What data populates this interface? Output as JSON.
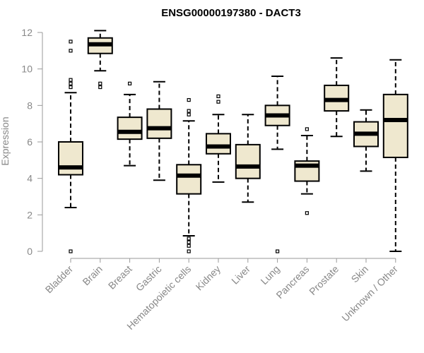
{
  "chart_data": {
    "type": "boxplot",
    "title": "ENSG00000197380 - DACT3",
    "xlabel": "",
    "ylabel": "Expression",
    "ylim": [
      0,
      12
    ],
    "yticks": [
      "0",
      "2",
      "4",
      "6",
      "8",
      "10",
      "12"
    ],
    "grid": false,
    "box_fill": "#efe8cf",
    "categories": [
      "Bladder",
      "Brain",
      "Breast",
      "Gastric",
      "Hematopoietic cells",
      "Kidney",
      "Liver",
      "Lung",
      "Pancreas",
      "Prostate",
      "Skin",
      "Unknown / Other"
    ],
    "boxes": [
      {
        "q1": 4.2,
        "median": 4.6,
        "q3": 6.0,
        "whisker_low": 2.4,
        "whisker_high": 8.7,
        "outliers": [
          0.0,
          9.0,
          9.2,
          9.4,
          11.0,
          11.5
        ]
      },
      {
        "q1": 10.85,
        "median": 11.35,
        "q3": 11.7,
        "whisker_low": 9.9,
        "whisker_high": 12.1,
        "outliers": [
          9.0,
          9.2
        ]
      },
      {
        "q1": 6.15,
        "median": 6.55,
        "q3": 7.35,
        "whisker_low": 4.7,
        "whisker_high": 8.6,
        "outliers": [
          9.2
        ]
      },
      {
        "q1": 6.2,
        "median": 6.75,
        "q3": 7.8,
        "whisker_low": 3.9,
        "whisker_high": 9.3,
        "outliers": []
      },
      {
        "q1": 3.15,
        "median": 4.15,
        "q3": 4.75,
        "whisker_low": 0.85,
        "whisker_high": 7.15,
        "outliers": [
          0.0,
          0.3,
          0.5,
          0.7,
          7.5,
          7.7,
          8.3
        ]
      },
      {
        "q1": 5.35,
        "median": 5.75,
        "q3": 6.45,
        "whisker_low": 3.8,
        "whisker_high": 7.5,
        "outliers": [
          8.2,
          8.5
        ]
      },
      {
        "q1": 4.0,
        "median": 4.65,
        "q3": 5.85,
        "whisker_low": 2.7,
        "whisker_high": 7.5,
        "outliers": []
      },
      {
        "q1": 6.9,
        "median": 7.45,
        "q3": 8.0,
        "whisker_low": 5.6,
        "whisker_high": 9.6,
        "outliers": [
          0.0
        ]
      },
      {
        "q1": 3.85,
        "median": 4.7,
        "q3": 4.95,
        "whisker_low": 3.15,
        "whisker_high": 6.35,
        "outliers": [
          2.1,
          6.7
        ]
      },
      {
        "q1": 7.7,
        "median": 8.3,
        "q3": 9.1,
        "whisker_low": 6.3,
        "whisker_high": 10.6,
        "outliers": []
      },
      {
        "q1": 5.75,
        "median": 6.45,
        "q3": 7.1,
        "whisker_low": 4.4,
        "whisker_high": 7.75,
        "outliers": []
      },
      {
        "q1": 5.15,
        "median": 7.2,
        "q3": 8.6,
        "whisker_low": 0.0,
        "whisker_high": 10.5,
        "outliers": []
      }
    ]
  }
}
